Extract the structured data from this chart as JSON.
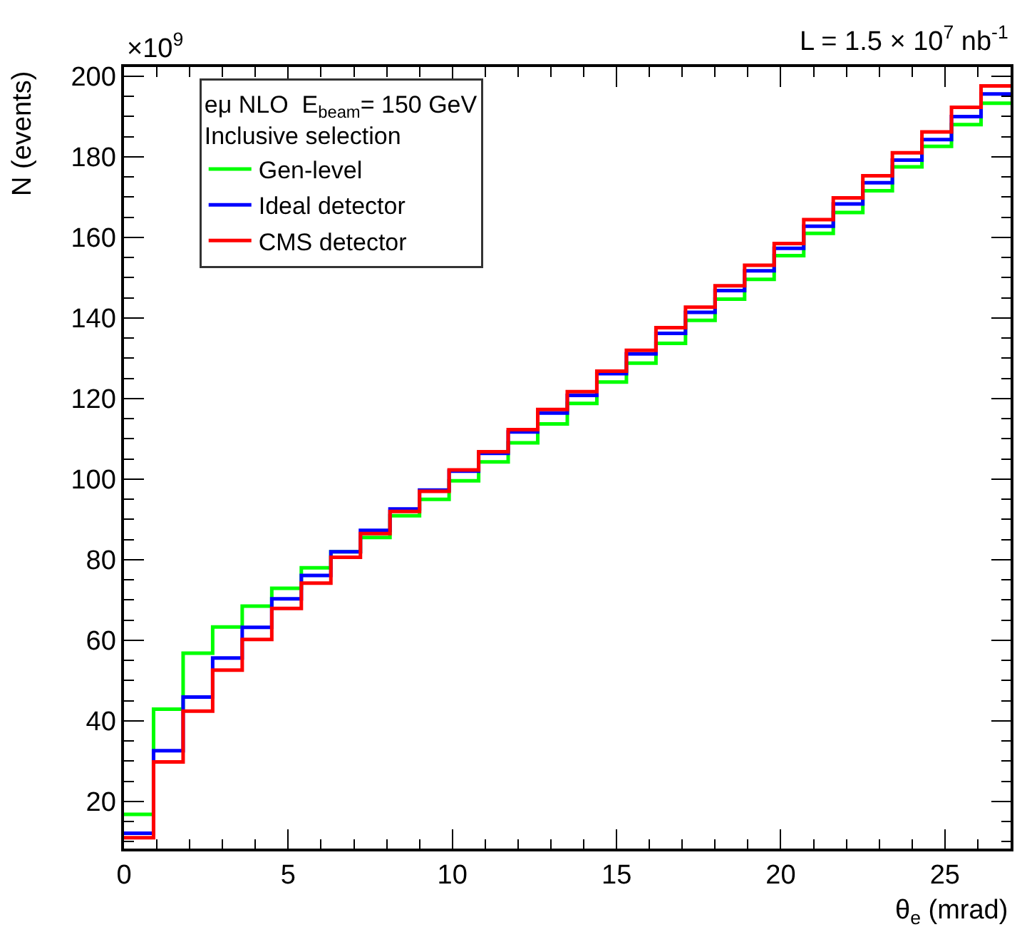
{
  "chart_data": {
    "type": "histogram",
    "xlabel": "θ$_{e}$ (mrad)",
    "ylabel": "N (events)",
    "legend_title": "eμ NLO  E$_{beam}$= 150 GeV\nInclusive selection",
    "annotations": [
      "×10$^{9}$",
      "L = 1.5 × 10$^{7}$ nb$^{-1}$"
    ],
    "bins": [
      0,
      0.9,
      1.8,
      2.7,
      3.6,
      4.5,
      5.4,
      6.3,
      7.2,
      8.1,
      9,
      9.9,
      10.8,
      11.7,
      12.6,
      13.5,
      14.4,
      15.3,
      16.2,
      17.1,
      18,
      18.9,
      19.8,
      20.7,
      21.6,
      22.5,
      23.4,
      24.3,
      25.2,
      26.1,
      27
    ],
    "series": [
      {
        "name": "Gen-level",
        "color": "#00ff00",
        "values": [
          16.8,
          42.9,
          56.8,
          63.3,
          68.5,
          72.9,
          78.0,
          82.0,
          85.5,
          90.9,
          95.0,
          99.6,
          104.3,
          109.0,
          113.7,
          118.8,
          124.1,
          128.8,
          133.7,
          139.4,
          144.7,
          149.6,
          155.5,
          161.0,
          166.2,
          171.6,
          177.5,
          182.6,
          188.0,
          193.3
        ]
      },
      {
        "name": "Ideal detector",
        "color": "#0000ff",
        "values": [
          12.1,
          32.6,
          45.9,
          55.6,
          63.2,
          70.3,
          76.1,
          82.0,
          87.3,
          92.6,
          97.3,
          102.0,
          106.4,
          111.7,
          116.4,
          120.8,
          126.2,
          131.1,
          136.2,
          141.4,
          146.8,
          151.7,
          157.3,
          162.8,
          168.3,
          173.6,
          179.2,
          184.3,
          190.0,
          195.6
        ]
      },
      {
        "name": "CMS detector",
        "color": "#ff0000",
        "values": [
          11.0,
          29.8,
          42.4,
          52.6,
          60.2,
          67.9,
          74.2,
          80.6,
          86.5,
          92.0,
          97.0,
          102.3,
          106.8,
          112.3,
          117.3,
          121.7,
          126.8,
          132.0,
          137.6,
          142.7,
          148.0,
          153.1,
          158.5,
          164.4,
          169.8,
          175.3,
          181.0,
          186.2,
          192.3,
          197.6
        ]
      }
    ],
    "xlim": [
      0,
      27
    ],
    "xticks": [
      0,
      5,
      10,
      15,
      20,
      25
    ],
    "ylim": [
      8.3,
      202.3
    ],
    "yticks": [
      20,
      40,
      60,
      80,
      100,
      120,
      140,
      160,
      180,
      200
    ],
    "legend": "top left"
  }
}
